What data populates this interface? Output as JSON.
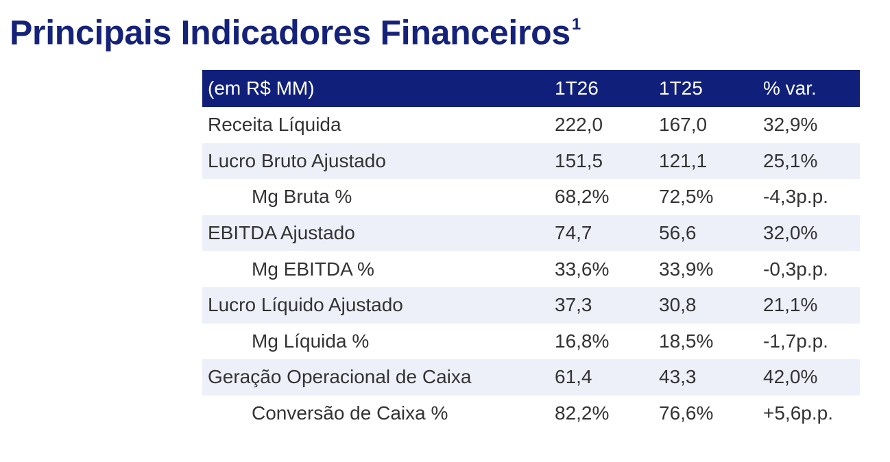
{
  "title": {
    "text": "Principais Indicadores Financeiros",
    "footnote": "1"
  },
  "table": {
    "header": [
      "(em R$ MM)",
      "1T26",
      "1T25",
      "% var."
    ],
    "rows": [
      {
        "label": "Receita Líquida",
        "v1": "222,0",
        "v2": "167,0",
        "v3": "32,9%"
      },
      {
        "label": "Lucro Bruto Ajustado",
        "v1": "151,5",
        "v2": "121,1",
        "v3": "25,1%"
      },
      {
        "label": "Mg Bruta %",
        "v1": "68,2%",
        "v2": "72,5%",
        "v3": "-4,3p.p."
      },
      {
        "label": "EBITDA Ajustado",
        "v1": "74,7",
        "v2": "56,6",
        "v3": "32,0%"
      },
      {
        "label": "Mg EBITDA %",
        "v1": "33,6%",
        "v2": "33,9%",
        "v3": "-0,3p.p."
      },
      {
        "label": "Lucro Líquido Ajustado",
        "v1": "37,3",
        "v2": "30,8",
        "v3": "21,1%"
      },
      {
        "label": "Mg Líquida %",
        "v1": "16,8%",
        "v2": "18,5%",
        "v3": "-1,7p.p."
      },
      {
        "label": "Geração Operacional de Caixa",
        "v1": "61,4",
        "v2": "43,3",
        "v3": "42,0%"
      },
      {
        "label": "Conversão de Caixa %",
        "v1": "82,2%",
        "v2": "76,6%",
        "v3": "+5,6p.p."
      }
    ]
  },
  "colors": {
    "title": "#15227a",
    "header_bg": "#10207a",
    "header_text": "#ffffff",
    "stripe": "#eef0f9",
    "body_text": "#333333"
  }
}
